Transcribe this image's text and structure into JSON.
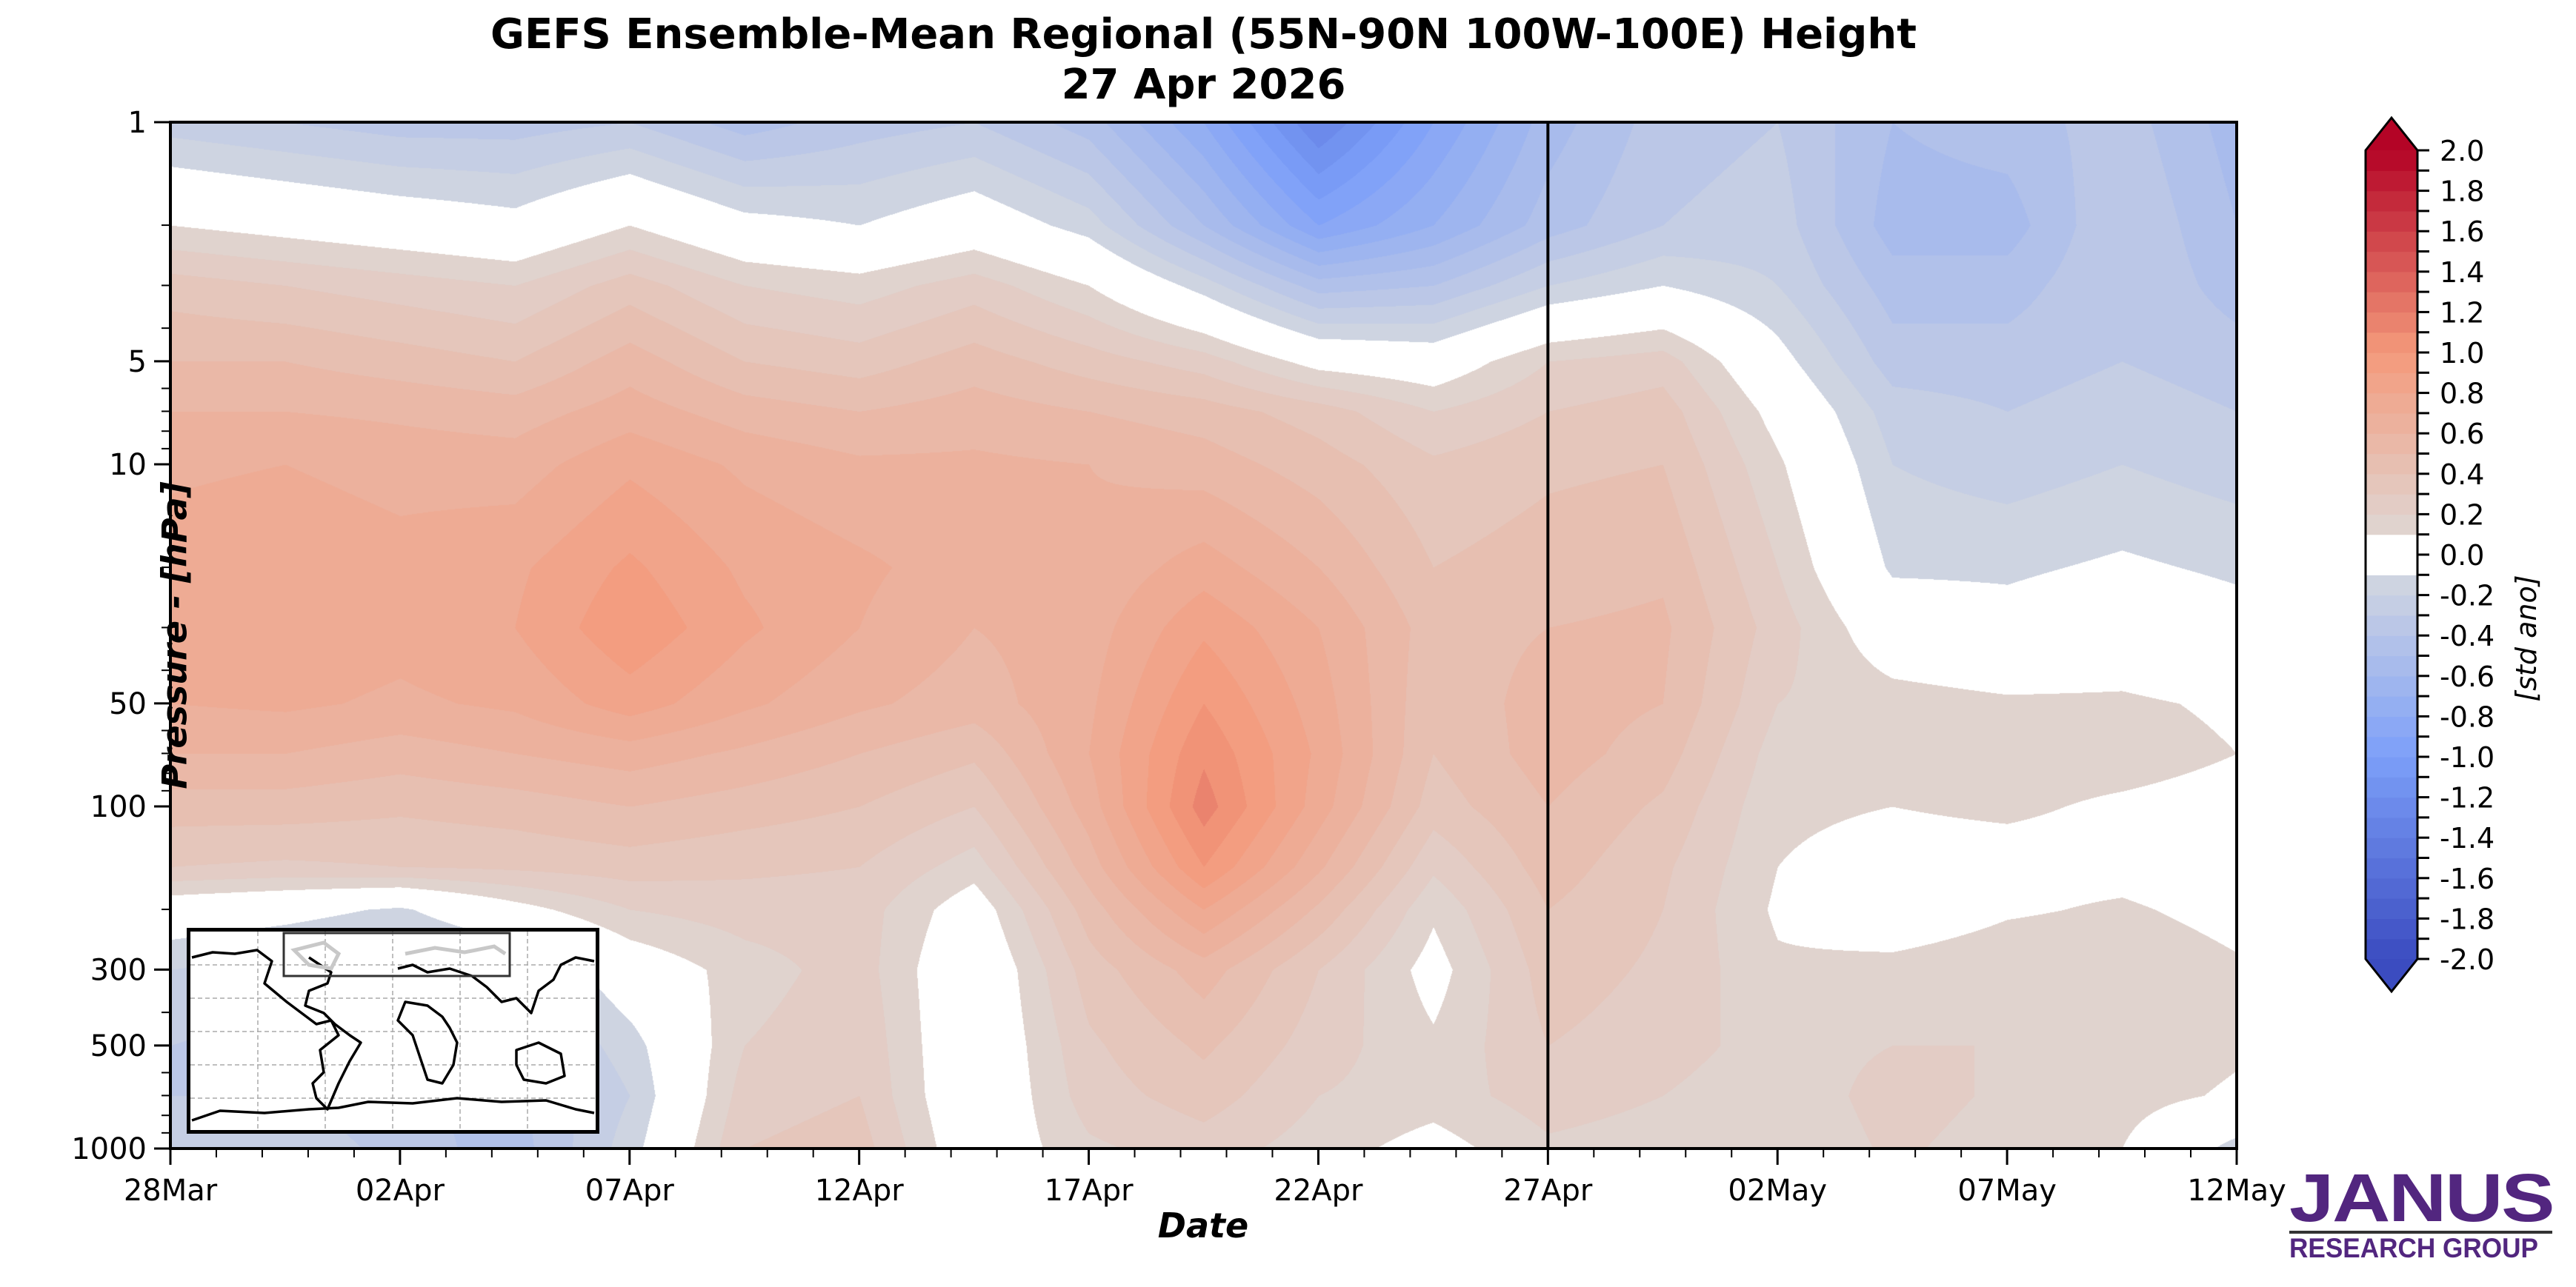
{
  "chart_data": {
    "type": "heatmap",
    "title": "GEFS Ensemble-Mean Regional (55N-90N 100W-100E) Height",
    "subtitle": "27 Apr 2026",
    "xlabel": "Date",
    "ylabel": "Pressure - [hPa]",
    "x_tick_labels": [
      "28Mar",
      "02Apr",
      "07Apr",
      "12Apr",
      "17Apr",
      "22Apr",
      "27Apr",
      "02May",
      "07May",
      "12May"
    ],
    "x_tick_days": [
      0,
      5,
      10,
      15,
      20,
      25,
      30,
      35,
      40,
      45
    ],
    "x_range_days": [
      0,
      45
    ],
    "x_start_date": "28Mar",
    "forecast_start_marker": "27Apr",
    "forecast_start_day": 30,
    "y_scale": "log",
    "y_inverted": true,
    "y_range": [
      1,
      1000
    ],
    "y_tick_labels": [
      "1",
      "5",
      "10",
      "50",
      "100",
      "300",
      "500",
      "1000"
    ],
    "y_tick_values": [
      1,
      5,
      10,
      50,
      100,
      300,
      500,
      1000
    ],
    "colorbar": {
      "label": "[std ano]",
      "min": -2.0,
      "max": 2.0,
      "step": 0.1,
      "extend": "both",
      "tick_labels": [
        "2.0",
        "1.8",
        "1.6",
        "1.4",
        "1.2",
        "1.0",
        "0.8",
        "0.6",
        "0.4",
        "0.2",
        "0.0",
        "-0.2",
        "-0.4",
        "-0.6",
        "-0.8",
        "-1.0",
        "-1.2",
        "-1.4",
        "-1.6",
        "-1.8",
        "-2.0"
      ],
      "zero_band": [
        -0.1,
        0.1
      ],
      "colormap": "coolwarm"
    },
    "grid": {
      "days": [
        0,
        2.5,
        5,
        7.5,
        10,
        12.5,
        15,
        17.5,
        20,
        22.5,
        25,
        27.5,
        30,
        32.5,
        35,
        37.5,
        40,
        42.5,
        45
      ],
      "levels_hpa": [
        1,
        2,
        3,
        5,
        7,
        10,
        20,
        30,
        50,
        70,
        100,
        150,
        200,
        300,
        500,
        700,
        1000
      ],
      "values": [
        [
          -0.25,
          -0.3,
          -0.35,
          -0.35,
          -0.3,
          -0.45,
          -0.35,
          -0.3,
          -0.45,
          -0.8,
          -1.3,
          -0.9,
          -0.55,
          -0.35,
          -0.3,
          -0.5,
          -0.45,
          -0.35,
          -0.55
        ],
        [
          0.1,
          0.05,
          0.0,
          -0.05,
          0.1,
          -0.05,
          -0.1,
          0.0,
          -0.15,
          -0.5,
          -0.9,
          -0.7,
          -0.45,
          -0.3,
          -0.25,
          -0.55,
          -0.55,
          -0.3,
          -0.5
        ],
        [
          0.35,
          0.3,
          0.25,
          0.2,
          0.35,
          0.2,
          0.15,
          0.25,
          0.1,
          -0.15,
          -0.45,
          -0.4,
          -0.2,
          -0.1,
          -0.2,
          -0.45,
          -0.45,
          -0.3,
          -0.45
        ],
        [
          0.5,
          0.5,
          0.45,
          0.4,
          0.55,
          0.4,
          0.35,
          0.45,
          0.35,
          0.25,
          0.05,
          0.0,
          0.2,
          0.25,
          -0.05,
          -0.35,
          -0.35,
          -0.3,
          -0.35
        ],
        [
          0.6,
          0.6,
          0.58,
          0.55,
          0.65,
          0.55,
          0.5,
          0.55,
          0.5,
          0.45,
          0.35,
          0.2,
          0.3,
          0.35,
          0.05,
          -0.25,
          -0.3,
          -0.25,
          -0.3
        ],
        [
          0.68,
          0.7,
          0.66,
          0.65,
          0.78,
          0.68,
          0.62,
          0.62,
          0.6,
          0.55,
          0.45,
          0.32,
          0.38,
          0.4,
          0.12,
          -0.2,
          -0.25,
          -0.2,
          -0.25
        ],
        [
          0.75,
          0.78,
          0.74,
          0.78,
          0.92,
          0.78,
          0.72,
          0.65,
          0.62,
          0.75,
          0.6,
          0.4,
          0.45,
          0.48,
          0.2,
          -0.12,
          -0.12,
          -0.08,
          -0.12
        ],
        [
          0.75,
          0.78,
          0.74,
          0.8,
          0.98,
          0.82,
          0.7,
          0.6,
          0.65,
          0.88,
          0.7,
          0.45,
          0.5,
          0.52,
          0.25,
          0.0,
          -0.05,
          0.0,
          -0.05
        ],
        [
          0.7,
          0.72,
          0.68,
          0.72,
          0.85,
          0.72,
          0.62,
          0.55,
          0.68,
          1.0,
          0.75,
          0.42,
          0.55,
          0.5,
          0.2,
          0.15,
          0.12,
          0.12,
          0.08
        ],
        [
          0.6,
          0.6,
          0.55,
          0.6,
          0.65,
          0.58,
          0.5,
          0.42,
          0.7,
          1.08,
          0.78,
          0.4,
          0.55,
          0.45,
          0.15,
          0.18,
          0.15,
          0.15,
          0.1
        ],
        [
          0.45,
          0.45,
          0.42,
          0.45,
          0.5,
          0.45,
          0.4,
          0.3,
          0.65,
          1.15,
          0.75,
          0.35,
          0.5,
          0.38,
          0.12,
          0.1,
          0.12,
          0.08,
          0.05
        ],
        [
          0.3,
          0.28,
          0.3,
          0.32,
          0.35,
          0.32,
          0.3,
          0.15,
          0.55,
          1.0,
          0.62,
          0.22,
          0.45,
          0.32,
          0.1,
          0.05,
          0.05,
          0.05,
          0.0
        ],
        [
          0.0,
          -0.05,
          -0.12,
          0.05,
          0.2,
          0.25,
          0.25,
          0.02,
          0.45,
          0.8,
          0.48,
          0.12,
          0.4,
          0.3,
          0.08,
          -0.02,
          0.08,
          0.12,
          0.05
        ],
        [
          -0.2,
          -0.25,
          -0.3,
          -0.25,
          0.0,
          0.15,
          0.25,
          -0.05,
          0.35,
          0.55,
          0.3,
          0.05,
          0.35,
          0.28,
          0.12,
          0.15,
          0.2,
          0.2,
          0.12
        ],
        [
          -0.3,
          -0.35,
          -0.35,
          -0.35,
          -0.15,
          0.2,
          0.28,
          -0.05,
          0.28,
          0.42,
          0.25,
          0.12,
          0.3,
          0.25,
          0.15,
          0.2,
          0.2,
          0.18,
          0.12
        ],
        [
          -0.3,
          -0.3,
          -0.4,
          -0.42,
          -0.2,
          0.25,
          0.3,
          -0.05,
          0.25,
          0.35,
          0.2,
          0.15,
          0.25,
          0.2,
          0.12,
          0.25,
          0.18,
          0.15,
          0.08
        ],
        [
          -0.3,
          -0.2,
          -0.35,
          -0.45,
          -0.15,
          0.3,
          0.35,
          -0.02,
          0.18,
          0.25,
          0.15,
          0.05,
          0.18,
          0.15,
          0.1,
          0.22,
          0.15,
          0.1,
          -0.15
        ]
      ]
    }
  },
  "colors": {
    "axis": "#000000",
    "logo": "#52267f"
  },
  "inset_map": {
    "description": "World map inset with highlighted region box 55N-90N 100W-100E"
  },
  "logo": {
    "line1": "JANUS",
    "line2": "RESEARCH GROUP"
  }
}
